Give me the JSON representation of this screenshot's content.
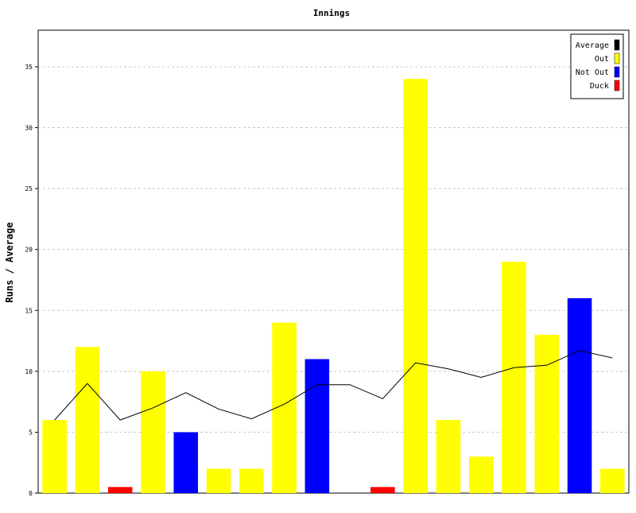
{
  "chart_data": {
    "type": "bar",
    "title": "Innings",
    "xlabel": "",
    "ylabel": "Runs / Average",
    "ylim": [
      0,
      38
    ],
    "yticks": [
      0,
      5,
      10,
      15,
      20,
      25,
      30,
      35
    ],
    "grid": true,
    "legend_position": "top-right",
    "legend": [
      {
        "label": "Average",
        "color": "#000000"
      },
      {
        "label": "Out",
        "color": "#ffff00"
      },
      {
        "label": "Not Out",
        "color": "#0000ff"
      },
      {
        "label": "Duck",
        "color": "#ff0000"
      }
    ],
    "innings": [
      {
        "runs": 6,
        "status": "Out"
      },
      {
        "runs": 12,
        "status": "Out"
      },
      {
        "runs": 0,
        "status": "Duck"
      },
      {
        "runs": 10,
        "status": "Out"
      },
      {
        "runs": 5,
        "status": "Not Out"
      },
      {
        "runs": 2,
        "status": "Out"
      },
      {
        "runs": 2,
        "status": "Out"
      },
      {
        "runs": 14,
        "status": "Out"
      },
      {
        "runs": 11,
        "status": "Not Out"
      },
      {
        "runs": null,
        "status": "Did Not Bat"
      },
      {
        "runs": 0,
        "status": "Duck"
      },
      {
        "runs": 34,
        "status": "Out"
      },
      {
        "runs": 6,
        "status": "Out"
      },
      {
        "runs": 3,
        "status": "Out"
      },
      {
        "runs": 19,
        "status": "Out"
      },
      {
        "runs": 13,
        "status": "Out"
      },
      {
        "runs": 16,
        "status": "Not Out"
      },
      {
        "runs": 2,
        "status": "Out"
      }
    ],
    "average": [
      6,
      9,
      6,
      7,
      8.25,
      6.9,
      6.1,
      7.3,
      8.9,
      8.9,
      7.75,
      10.7,
      10.2,
      9.5,
      10.3,
      10.5,
      11.7,
      11.1
    ],
    "colors": {
      "Out": "#ffff00",
      "Not Out": "#0000ff",
      "Duck": "#ff0000",
      "Average": "#000000"
    }
  }
}
